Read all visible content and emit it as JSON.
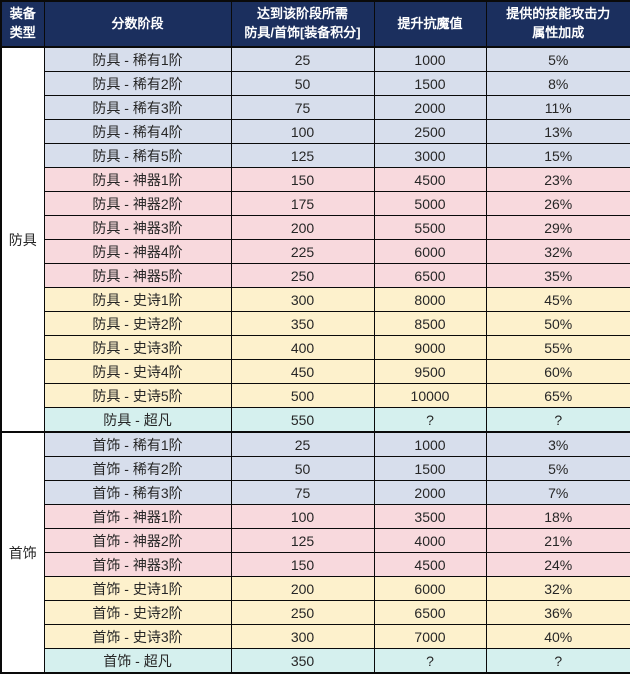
{
  "colors": {
    "header_bg": "#1B2F5E",
    "header_text": "#FFFFFF",
    "border": "#0A0A0A",
    "text": "#262626",
    "group_bg": "#FFFFFF",
    "rare": "#D7DEEC",
    "artifact": "#F8D9DD",
    "epic": "#FDF1CC",
    "transcendent": "#D5F0EE"
  },
  "header": {
    "col_equipment_type": "装备\n类型",
    "col_score_stage": "分数阶段",
    "col_required_points": "达到该阶段所需\n防具/首饰[装备积分]",
    "col_resist_value": "提升抗魔值",
    "col_skill_bonus": "提供的技能攻击力\n属性加成"
  },
  "groups": [
    {
      "label": "防具",
      "rows": [
        {
          "stage": "防具 - 稀有1阶",
          "points": "25",
          "resist": "1000",
          "bonus": "5%",
          "tier": "rare"
        },
        {
          "stage": "防具 - 稀有2阶",
          "points": "50",
          "resist": "1500",
          "bonus": "8%",
          "tier": "rare"
        },
        {
          "stage": "防具 - 稀有3阶",
          "points": "75",
          "resist": "2000",
          "bonus": "11%",
          "tier": "rare"
        },
        {
          "stage": "防具 - 稀有4阶",
          "points": "100",
          "resist": "2500",
          "bonus": "13%",
          "tier": "rare"
        },
        {
          "stage": "防具 - 稀有5阶",
          "points": "125",
          "resist": "3000",
          "bonus": "15%",
          "tier": "rare"
        },
        {
          "stage": "防具 - 神器1阶",
          "points": "150",
          "resist": "4500",
          "bonus": "23%",
          "tier": "artifact"
        },
        {
          "stage": "防具 - 神器2阶",
          "points": "175",
          "resist": "5000",
          "bonus": "26%",
          "tier": "artifact"
        },
        {
          "stage": "防具 - 神器3阶",
          "points": "200",
          "resist": "5500",
          "bonus": "29%",
          "tier": "artifact"
        },
        {
          "stage": "防具 - 神器4阶",
          "points": "225",
          "resist": "6000",
          "bonus": "32%",
          "tier": "artifact"
        },
        {
          "stage": "防具 - 神器5阶",
          "points": "250",
          "resist": "6500",
          "bonus": "35%",
          "tier": "artifact"
        },
        {
          "stage": "防具 - 史诗1阶",
          "points": "300",
          "resist": "8000",
          "bonus": "45%",
          "tier": "epic"
        },
        {
          "stage": "防具 - 史诗2阶",
          "points": "350",
          "resist": "8500",
          "bonus": "50%",
          "tier": "epic"
        },
        {
          "stage": "防具 - 史诗3阶",
          "points": "400",
          "resist": "9000",
          "bonus": "55%",
          "tier": "epic"
        },
        {
          "stage": "防具 - 史诗4阶",
          "points": "450",
          "resist": "9500",
          "bonus": "60%",
          "tier": "epic"
        },
        {
          "stage": "防具 - 史诗5阶",
          "points": "500",
          "resist": "10000",
          "bonus": "65%",
          "tier": "epic"
        },
        {
          "stage": "防具 - 超凡",
          "points": "550",
          "resist": "?",
          "bonus": "?",
          "tier": "transcendent"
        }
      ]
    },
    {
      "label": "首饰",
      "rows": [
        {
          "stage": "首饰 - 稀有1阶",
          "points": "25",
          "resist": "1000",
          "bonus": "3%",
          "tier": "rare"
        },
        {
          "stage": "首饰 - 稀有2阶",
          "points": "50",
          "resist": "1500",
          "bonus": "5%",
          "tier": "rare"
        },
        {
          "stage": "首饰 - 稀有3阶",
          "points": "75",
          "resist": "2000",
          "bonus": "7%",
          "tier": "rare"
        },
        {
          "stage": "首饰 - 神器1阶",
          "points": "100",
          "resist": "3500",
          "bonus": "18%",
          "tier": "artifact"
        },
        {
          "stage": "首饰 - 神器2阶",
          "points": "125",
          "resist": "4000",
          "bonus": "21%",
          "tier": "artifact"
        },
        {
          "stage": "首饰 - 神器3阶",
          "points": "150",
          "resist": "4500",
          "bonus": "24%",
          "tier": "artifact"
        },
        {
          "stage": "首饰 - 史诗1阶",
          "points": "200",
          "resist": "6000",
          "bonus": "32%",
          "tier": "epic"
        },
        {
          "stage": "首饰 - 史诗2阶",
          "points": "250",
          "resist": "6500",
          "bonus": "36%",
          "tier": "epic"
        },
        {
          "stage": "首饰 - 史诗3阶",
          "points": "300",
          "resist": "7000",
          "bonus": "40%",
          "tier": "epic"
        },
        {
          "stage": "首饰 - 超凡",
          "points": "350",
          "resist": "?",
          "bonus": "?",
          "tier": "transcendent"
        }
      ]
    }
  ]
}
